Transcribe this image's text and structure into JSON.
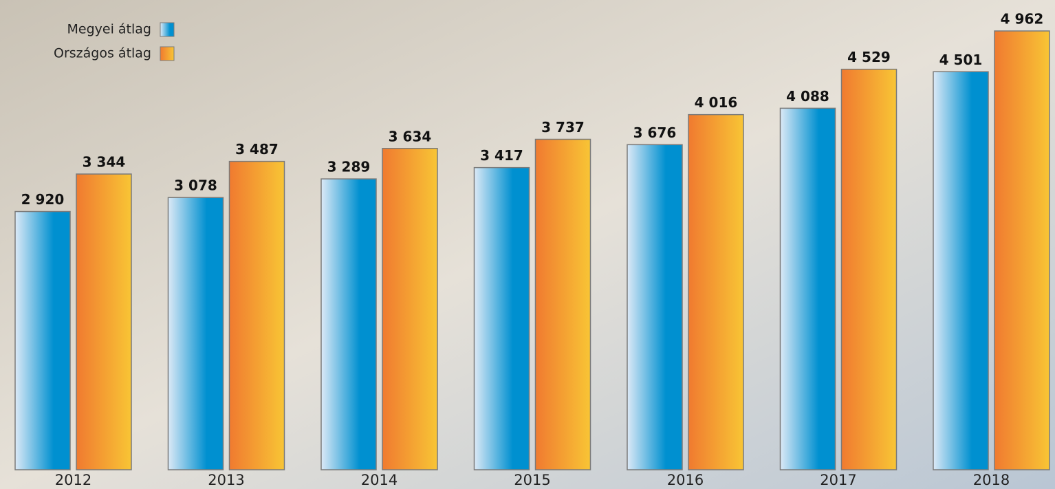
{
  "chart_data": {
    "type": "bar",
    "categories": [
      "2012",
      "2013",
      "2014",
      "2015",
      "2016",
      "2017",
      "2018"
    ],
    "series": [
      {
        "name": "Megyei átlag",
        "color": "#0090d0",
        "values": [
          2920,
          3078,
          3289,
          3417,
          3676,
          4088,
          4501
        ],
        "value_labels": [
          "2 920",
          "3 078",
          "3 289",
          "3 417",
          "3 676",
          "4 088",
          "4 501"
        ]
      },
      {
        "name": "Országos átlag",
        "color": "#f07a30",
        "values": [
          3344,
          3487,
          3634,
          3737,
          4016,
          4529,
          4962
        ],
        "value_labels": [
          "3 344",
          "3 487",
          "3 634",
          "3 737",
          "4 016",
          "4 529",
          "4 962"
        ]
      }
    ]
  }
}
